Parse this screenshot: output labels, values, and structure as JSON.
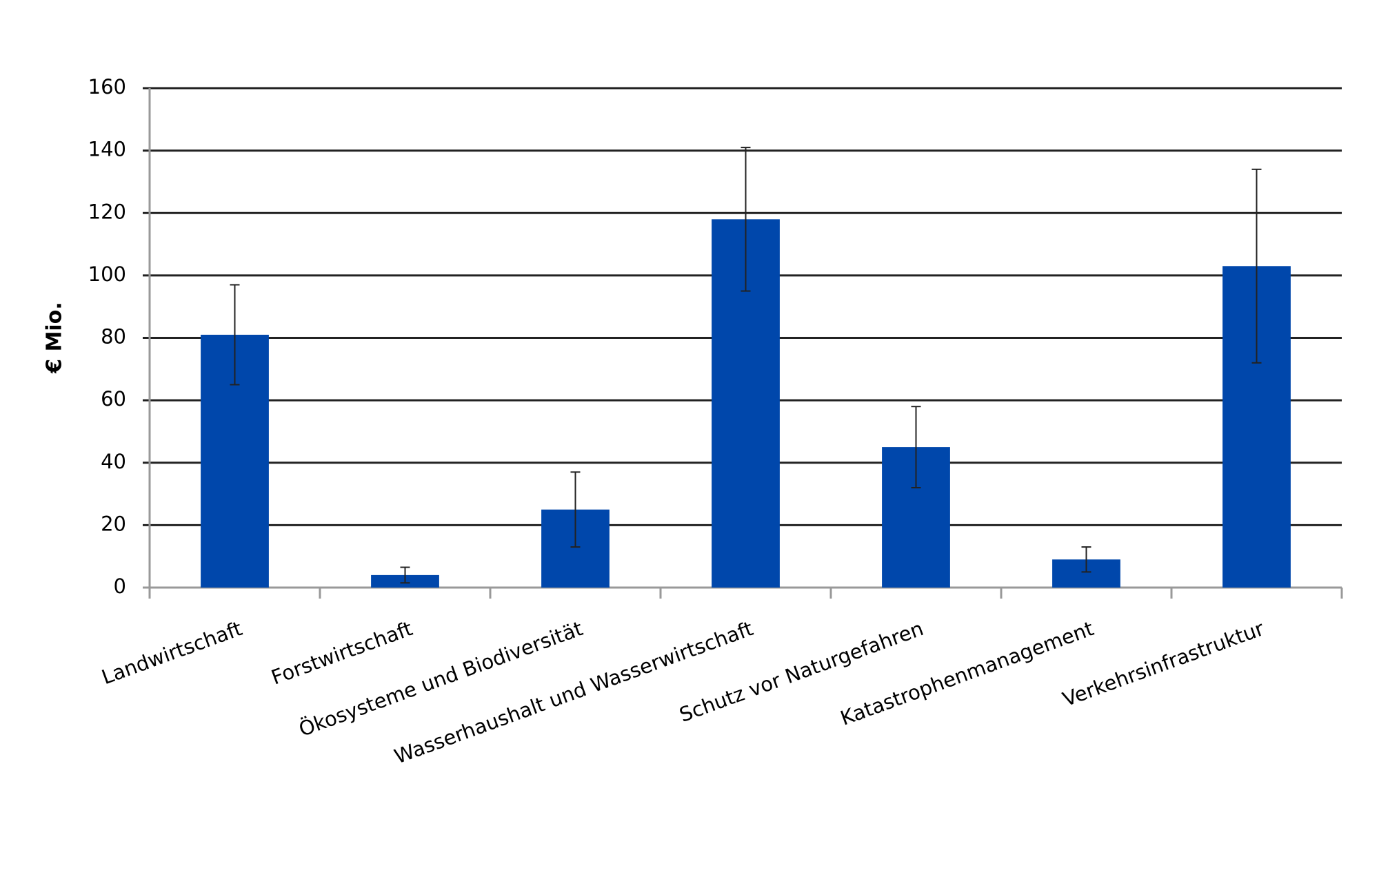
{
  "chart_data": {
    "type": "bar",
    "y_label": "€ Mio.",
    "categories": [
      "Landwirtschaft",
      "Forstwirtschaft",
      "Ökosysteme und Biodiversität",
      "Wasserhaushalt und Wasserwirtschaft",
      "Schutz vor Naturgefahren",
      "Katastrophenmanagement",
      "Verkehrsinfrastruktur"
    ],
    "values": [
      81,
      4,
      25,
      118,
      45,
      9,
      103
    ],
    "errors": [
      16,
      2.5,
      12,
      23,
      13,
      4,
      31
    ],
    "color": "#0047ab",
    "ylim": [
      0,
      160
    ],
    "yticks": [
      0,
      20,
      40,
      60,
      80,
      100,
      120,
      140,
      160
    ],
    "grid": true
  }
}
